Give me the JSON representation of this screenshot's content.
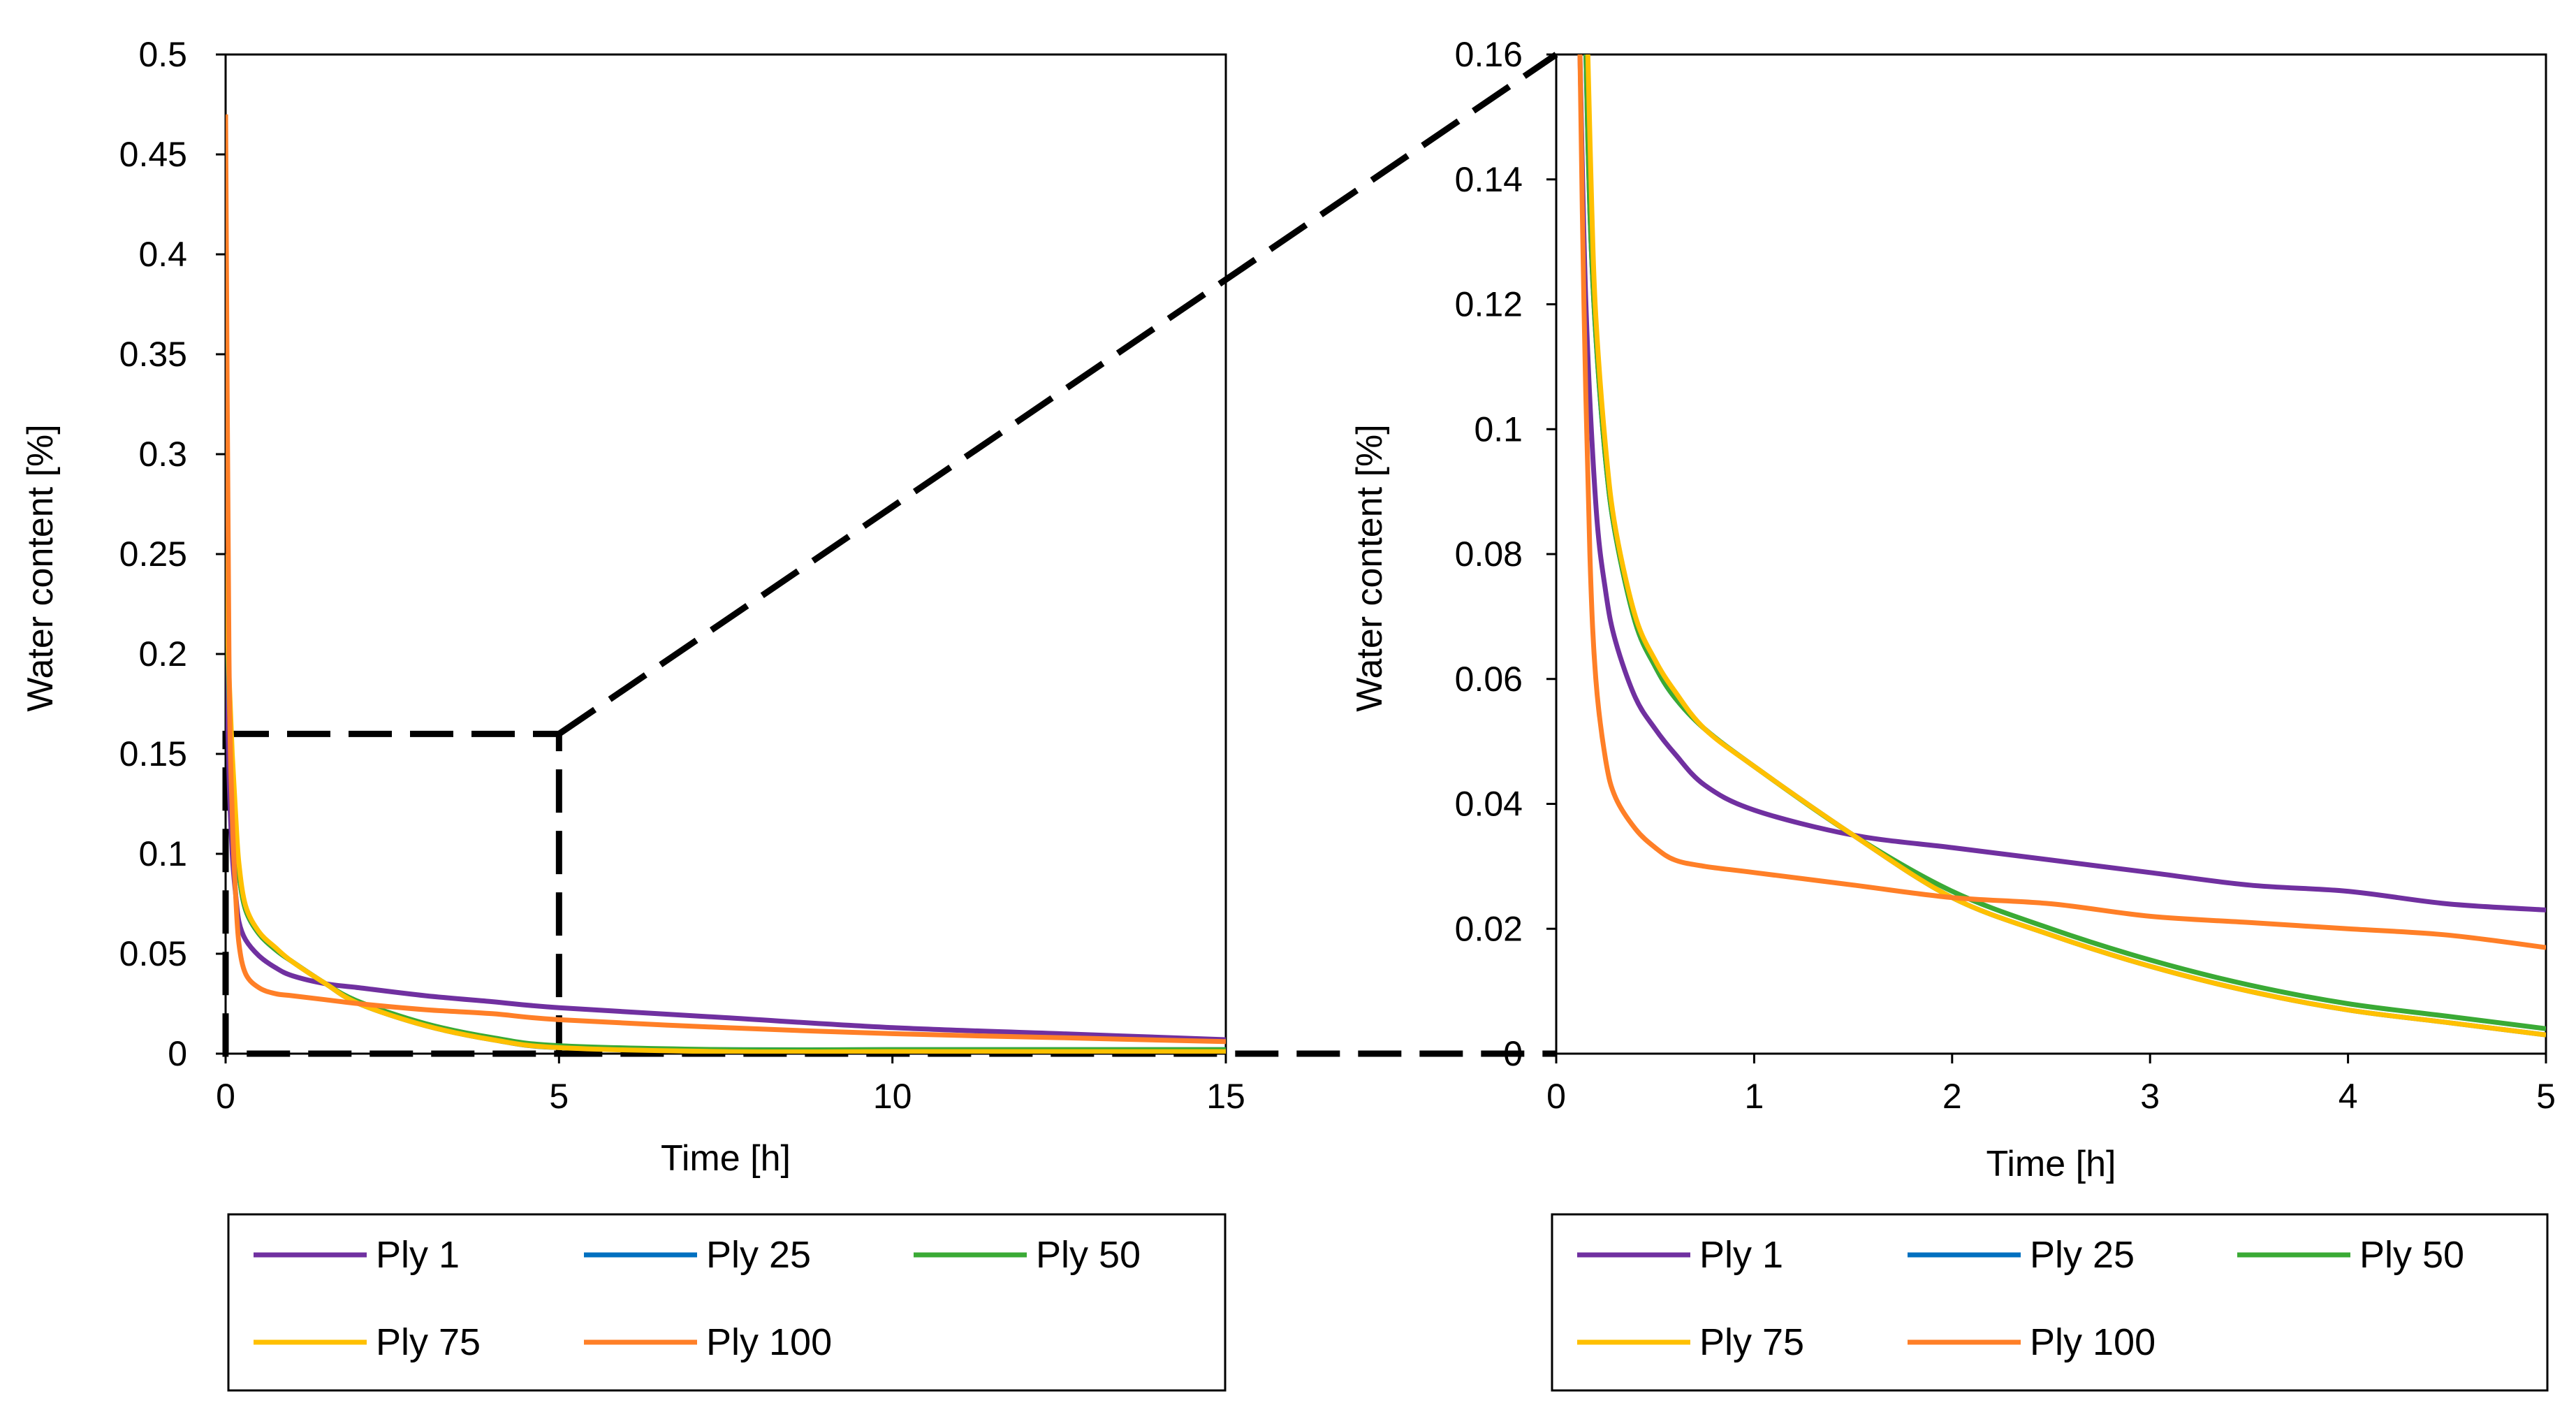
{
  "chart_data": [
    {
      "type": "line",
      "name": "full",
      "xlabel": "Time  [h]",
      "ylabel": "Water content [%]",
      "xlim": [
        0,
        15
      ],
      "ylim": [
        0,
        0.5
      ],
      "xticks": [
        0,
        5,
        10,
        15
      ],
      "xtick_labels": [
        "0",
        "5",
        "10",
        "15"
      ],
      "yticks": [
        0,
        0.05,
        0.1,
        0.15,
        0.2,
        0.25,
        0.3,
        0.35,
        0.4,
        0.45,
        0.5
      ],
      "ytick_labels": [
        "0",
        "0.05",
        "0.1",
        "0.15",
        "0.2",
        "0.25",
        "0.3",
        "0.35",
        "0.4",
        "0.45",
        "0.5"
      ],
      "zoom_box": {
        "x": [
          0,
          5
        ],
        "y": [
          0,
          0.16
        ]
      },
      "legend": [
        "Ply 1",
        "Ply 25",
        "Ply 50",
        "Ply 75",
        "Ply 100"
      ],
      "series": [
        {
          "name": "Ply 1",
          "color": "#7030A0",
          "x": [
            0,
            0.05,
            0.1,
            0.15,
            0.2,
            0.3,
            0.5,
            0.75,
            1,
            1.5,
            2,
            3,
            4,
            5,
            7.5,
            10,
            12.5,
            15
          ],
          "y": [
            0.22,
            0.14,
            0.1,
            0.08,
            0.066,
            0.057,
            0.049,
            0.043,
            0.039,
            0.035,
            0.033,
            0.029,
            0.026,
            0.023,
            0.018,
            0.013,
            0.01,
            0.007
          ]
        },
        {
          "name": "Ply 25",
          "color": "#0070C0",
          "x": [
            0,
            0.05,
            0.1,
            0.15,
            0.2,
            0.3,
            0.5,
            0.75,
            1,
            1.5,
            2,
            3,
            4,
            5,
            7.5,
            10,
            12.5,
            15
          ],
          "y": [
            0.25,
            0.18,
            0.14,
            0.11,
            0.09,
            0.072,
            0.06,
            0.052,
            0.046,
            0.035,
            0.025,
            0.014,
            0.007,
            0.003,
            0.002,
            0.002,
            0.002,
            0.002
          ]
        },
        {
          "name": "Ply 50",
          "color": "#3AAA35",
          "x": [
            0,
            0.05,
            0.1,
            0.15,
            0.2,
            0.3,
            0.5,
            0.75,
            1,
            1.5,
            2,
            3,
            4,
            5,
            7.5,
            10,
            12.5,
            15
          ],
          "y": [
            0.25,
            0.18,
            0.14,
            0.11,
            0.09,
            0.072,
            0.06,
            0.052,
            0.046,
            0.035,
            0.026,
            0.015,
            0.008,
            0.004,
            0.002,
            0.002,
            0.002,
            0.002
          ]
        },
        {
          "name": "Ply 75",
          "color": "#FFC000",
          "x": [
            0,
            0.05,
            0.1,
            0.15,
            0.2,
            0.3,
            0.5,
            0.75,
            1,
            1.5,
            2,
            3,
            4,
            5,
            7.5,
            10,
            12.5,
            15
          ],
          "y": [
            0.25,
            0.19,
            0.15,
            0.12,
            0.095,
            0.074,
            0.061,
            0.053,
            0.046,
            0.035,
            0.025,
            0.014,
            0.007,
            0.003,
            0.001,
            0.001,
            0.001,
            0.001
          ]
        },
        {
          "name": "Ply 100",
          "color": "#FF7F27",
          "x": [
            0,
            0.05,
            0.1,
            0.15,
            0.2,
            0.3,
            0.5,
            0.75,
            1,
            1.5,
            2,
            3,
            4,
            5,
            7.5,
            10,
            12.5,
            15
          ],
          "y": [
            0.47,
            0.2,
            0.12,
            0.08,
            0.055,
            0.04,
            0.033,
            0.03,
            0.029,
            0.027,
            0.025,
            0.022,
            0.02,
            0.017,
            0.013,
            0.01,
            0.008,
            0.006
          ]
        }
      ]
    },
    {
      "type": "line",
      "name": "zoom",
      "xlabel": "Time  [h]",
      "ylabel": "Water content [%]",
      "xlim": [
        0,
        5
      ],
      "ylim": [
        0,
        0.16
      ],
      "xticks": [
        0,
        1,
        2,
        3,
        4,
        5
      ],
      "xtick_labels": [
        "0",
        "1",
        "2",
        "3",
        "4",
        "5"
      ],
      "yticks": [
        0,
        0.02,
        0.04,
        0.06,
        0.08,
        0.1,
        0.12,
        0.14,
        0.16
      ],
      "ytick_labels": [
        "0",
        "0.02",
        "0.04",
        "0.06",
        "0.08",
        "0.1",
        "0.12",
        "0.14",
        "0.16"
      ],
      "legend": [
        "Ply 1",
        "Ply 25",
        "Ply 50",
        "Ply 75",
        "Ply 100"
      ],
      "series": [
        {
          "name": "Ply 1",
          "color": "#7030A0",
          "x": [
            0.12,
            0.15,
            0.2,
            0.25,
            0.3,
            0.4,
            0.5,
            0.6,
            0.75,
            1,
            1.5,
            2,
            2.5,
            3,
            3.5,
            4,
            4.5,
            5
          ],
          "y": [
            0.16,
            0.12,
            0.088,
            0.074,
            0.066,
            0.057,
            0.052,
            0.048,
            0.043,
            0.039,
            0.035,
            0.033,
            0.031,
            0.029,
            0.027,
            0.026,
            0.024,
            0.023
          ]
        },
        {
          "name": "Ply 25",
          "color": "#0070C0",
          "x": [
            0.15,
            0.17,
            0.2,
            0.25,
            0.3,
            0.4,
            0.5,
            0.6,
            0.75,
            1,
            1.5,
            2,
            2.5,
            3,
            3.5,
            4,
            4.5,
            5
          ],
          "y": [
            0.16,
            0.135,
            0.115,
            0.095,
            0.083,
            0.069,
            0.062,
            0.057,
            0.052,
            0.046,
            0.035,
            0.025,
            0.019,
            0.014,
            0.01,
            0.007,
            0.005,
            0.003
          ]
        },
        {
          "name": "Ply 50",
          "color": "#3AAA35",
          "x": [
            0.15,
            0.17,
            0.2,
            0.25,
            0.3,
            0.4,
            0.5,
            0.6,
            0.75,
            1,
            1.5,
            2,
            2.5,
            3,
            3.5,
            4,
            4.5,
            5
          ],
          "y": [
            0.16,
            0.135,
            0.115,
            0.095,
            0.083,
            0.069,
            0.062,
            0.057,
            0.052,
            0.046,
            0.035,
            0.026,
            0.02,
            0.015,
            0.011,
            0.008,
            0.006,
            0.004
          ]
        },
        {
          "name": "Ply 75",
          "color": "#FFC000",
          "x": [
            0.16,
            0.18,
            0.2,
            0.25,
            0.3,
            0.4,
            0.5,
            0.6,
            0.75,
            1,
            1.5,
            2,
            2.5,
            3,
            3.5,
            4,
            4.5,
            5
          ],
          "y": [
            0.16,
            0.135,
            0.118,
            0.097,
            0.084,
            0.07,
            0.063,
            0.058,
            0.052,
            0.046,
            0.035,
            0.025,
            0.019,
            0.014,
            0.01,
            0.007,
            0.005,
            0.003
          ]
        },
        {
          "name": "Ply 100",
          "color": "#FF7F27",
          "x": [
            0.12,
            0.14,
            0.17,
            0.2,
            0.25,
            0.3,
            0.4,
            0.5,
            0.6,
            0.75,
            1,
            1.5,
            2,
            2.5,
            3,
            3.5,
            4,
            4.5,
            5
          ],
          "y": [
            0.16,
            0.12,
            0.08,
            0.06,
            0.047,
            0.041,
            0.036,
            0.033,
            0.031,
            0.03,
            0.029,
            0.027,
            0.025,
            0.024,
            0.022,
            0.021,
            0.02,
            0.019,
            0.017
          ]
        }
      ]
    }
  ]
}
